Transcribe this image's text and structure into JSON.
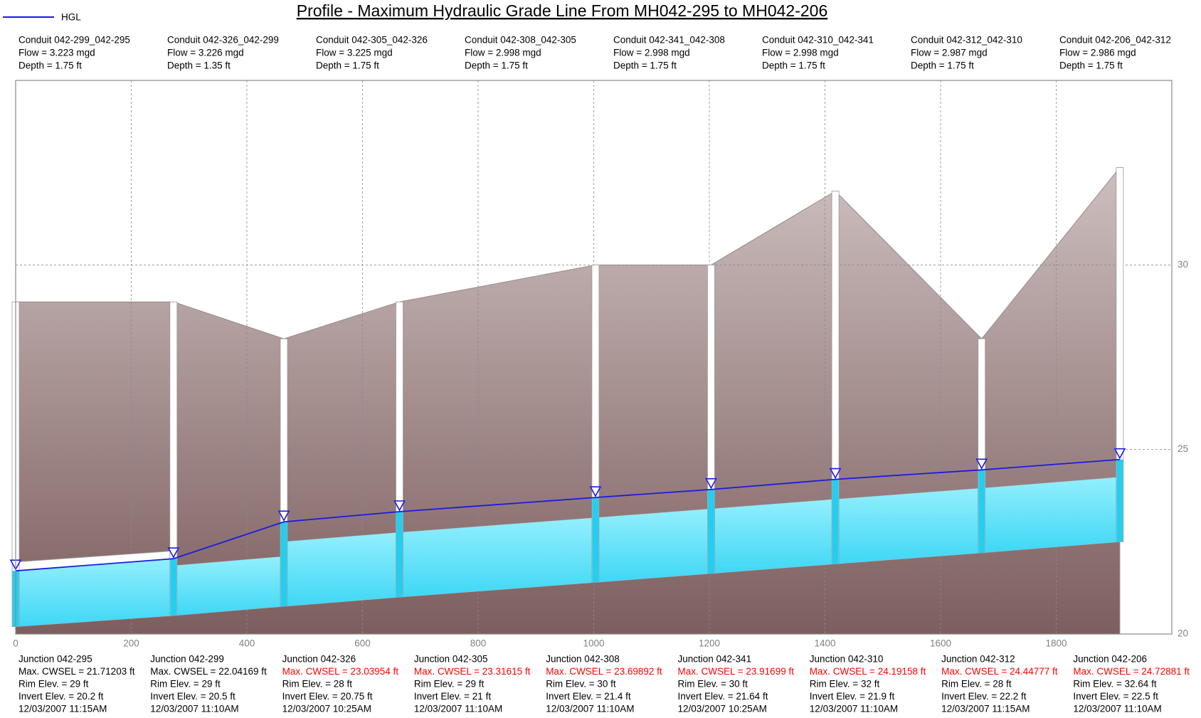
{
  "chart_data": {
    "type": "profile",
    "title": "Profile - Maximum Hydraulic Grade Line From MH042-295 to MH042-206",
    "hgl": {
      "name": "HGL",
      "color": "#1a1ae6"
    },
    "xlim": [
      0,
      2000
    ],
    "xticks": [
      0,
      200,
      400,
      600,
      800,
      1000,
      1200,
      1400,
      1600,
      1800
    ],
    "ylim": [
      20,
      35
    ],
    "yticks": [
      20,
      25,
      30
    ],
    "grid": true,
    "conduits": [
      {
        "name": "Conduit 042-299_042-295",
        "flow": "Flow = 3.223 mgd",
        "depth": 1.75,
        "depth_label": "Depth = 1.75 ft"
      },
      {
        "name": "Conduit 042-326_042-299",
        "flow": "Flow = 3.226 mgd",
        "depth": 1.35,
        "depth_label": "Depth = 1.35 ft"
      },
      {
        "name": "Conduit 042-305_042-326",
        "flow": "Flow = 3.225 mgd",
        "depth": 1.75,
        "depth_label": "Depth = 1.75 ft"
      },
      {
        "name": "Conduit 042-308_042-305",
        "flow": "Flow = 2.998 mgd",
        "depth": 1.75,
        "depth_label": "Depth = 1.75 ft"
      },
      {
        "name": "Conduit 042-341_042-308",
        "flow": "Flow = 2.998 mgd",
        "depth": 1.75,
        "depth_label": "Depth = 1.75 ft"
      },
      {
        "name": "Conduit 042-310_042-341",
        "flow": "Flow = 2.998 mgd",
        "depth": 1.75,
        "depth_label": "Depth = 1.75 ft"
      },
      {
        "name": "Conduit 042-312_042-310",
        "flow": "Flow = 2.987 mgd",
        "depth": 1.75,
        "depth_label": "Depth = 1.75 ft"
      },
      {
        "name": "Conduit 042-206_042-312",
        "flow": "Flow = 2.986 mgd",
        "depth": 1.75,
        "depth_label": "Depth = 1.75 ft"
      }
    ],
    "junctions": [
      {
        "name": "Junction 042-295",
        "station": 0,
        "max_cwsel": 21.71203,
        "cwsel_label": "Max. CWSEL = 21.71203 ft",
        "cwsel_color": "#000000",
        "rim": 29,
        "rim_label": "Rim Elev. = 29 ft",
        "invert": 20.2,
        "invert_label": "Invert Elev. = 20.2 ft",
        "time": "12/03/2007 11:15AM"
      },
      {
        "name": "Junction 042-299",
        "station": 273,
        "max_cwsel": 22.04169,
        "cwsel_label": "Max. CWSEL = 22.04169 ft",
        "cwsel_color": "#000000",
        "rim": 29,
        "rim_label": "Rim Elev. = 29 ft",
        "invert": 20.5,
        "invert_label": "Invert Elev. = 20.5 ft",
        "time": "12/03/2007 11:10AM"
      },
      {
        "name": "Junction 042-326",
        "station": 464,
        "max_cwsel": 23.03954,
        "cwsel_label": "Max. CWSEL = 23.03954 ft",
        "cwsel_color": "#ff0000",
        "rim": 28,
        "rim_label": "Rim Elev. = 28 ft",
        "invert": 20.75,
        "invert_label": "Invert Elev. = 20.75 ft",
        "time": "12/03/2007 10:25AM"
      },
      {
        "name": "Junction 042-305",
        "station": 664,
        "max_cwsel": 23.31615,
        "cwsel_label": "Max. CWSEL = 23.31615 ft",
        "cwsel_color": "#ff0000",
        "rim": 29,
        "rim_label": "Rim Elev. = 29 ft",
        "invert": 21,
        "invert_label": "Invert Elev. = 21 ft",
        "time": "12/03/2007 11:10AM"
      },
      {
        "name": "Junction 042-308",
        "station": 1003,
        "max_cwsel": 23.69892,
        "cwsel_label": "Max. CWSEL = 23.69892 ft",
        "cwsel_color": "#ff0000",
        "rim": 30,
        "rim_label": "Rim Elev. = 30 ft",
        "invert": 21.4,
        "invert_label": "Invert Elev. = 21.4 ft",
        "time": "12/03/2007 11:10AM"
      },
      {
        "name": "Junction 042-341",
        "station": 1203,
        "max_cwsel": 23.91699,
        "cwsel_label": "Max. CWSEL = 23.91699 ft",
        "cwsel_color": "#ff0000",
        "rim": 30,
        "rim_label": "Rim Elev. = 30 ft",
        "invert": 21.64,
        "invert_label": "Invert Elev. = 21.64 ft",
        "time": "12/03/2007 10:25AM"
      },
      {
        "name": "Junction 042-310",
        "station": 1418,
        "max_cwsel": 24.19158,
        "cwsel_label": "Max. CWSEL = 24.19158 ft",
        "cwsel_color": "#ff0000",
        "rim": 32,
        "rim_label": "Rim Elev. = 32 ft",
        "invert": 21.9,
        "invert_label": "Invert Elev. = 21.9 ft",
        "time": "12/03/2007 11:10AM"
      },
      {
        "name": "Junction 042-312",
        "station": 1671,
        "max_cwsel": 24.44777,
        "cwsel_label": "Max. CWSEL = 24.44777 ft",
        "cwsel_color": "#ff0000",
        "rim": 28,
        "rim_label": "Rim Elev. = 28 ft",
        "invert": 22.2,
        "invert_label": "Invert Elev. = 22.2 ft",
        "time": "12/03/2007 11:15AM"
      },
      {
        "name": "Junction 042-206",
        "station": 1910,
        "max_cwsel": 24.72881,
        "cwsel_label": "Max. CWSEL = 24.72881 ft",
        "cwsel_color": "#ff0000",
        "rim": 32.64,
        "rim_label": "Rim Elev. = 32.64 ft",
        "invert": 22.5,
        "invert_label": "Invert Elev. = 22.5 ft",
        "time": "12/03/2007 11:10AM"
      }
    ]
  }
}
